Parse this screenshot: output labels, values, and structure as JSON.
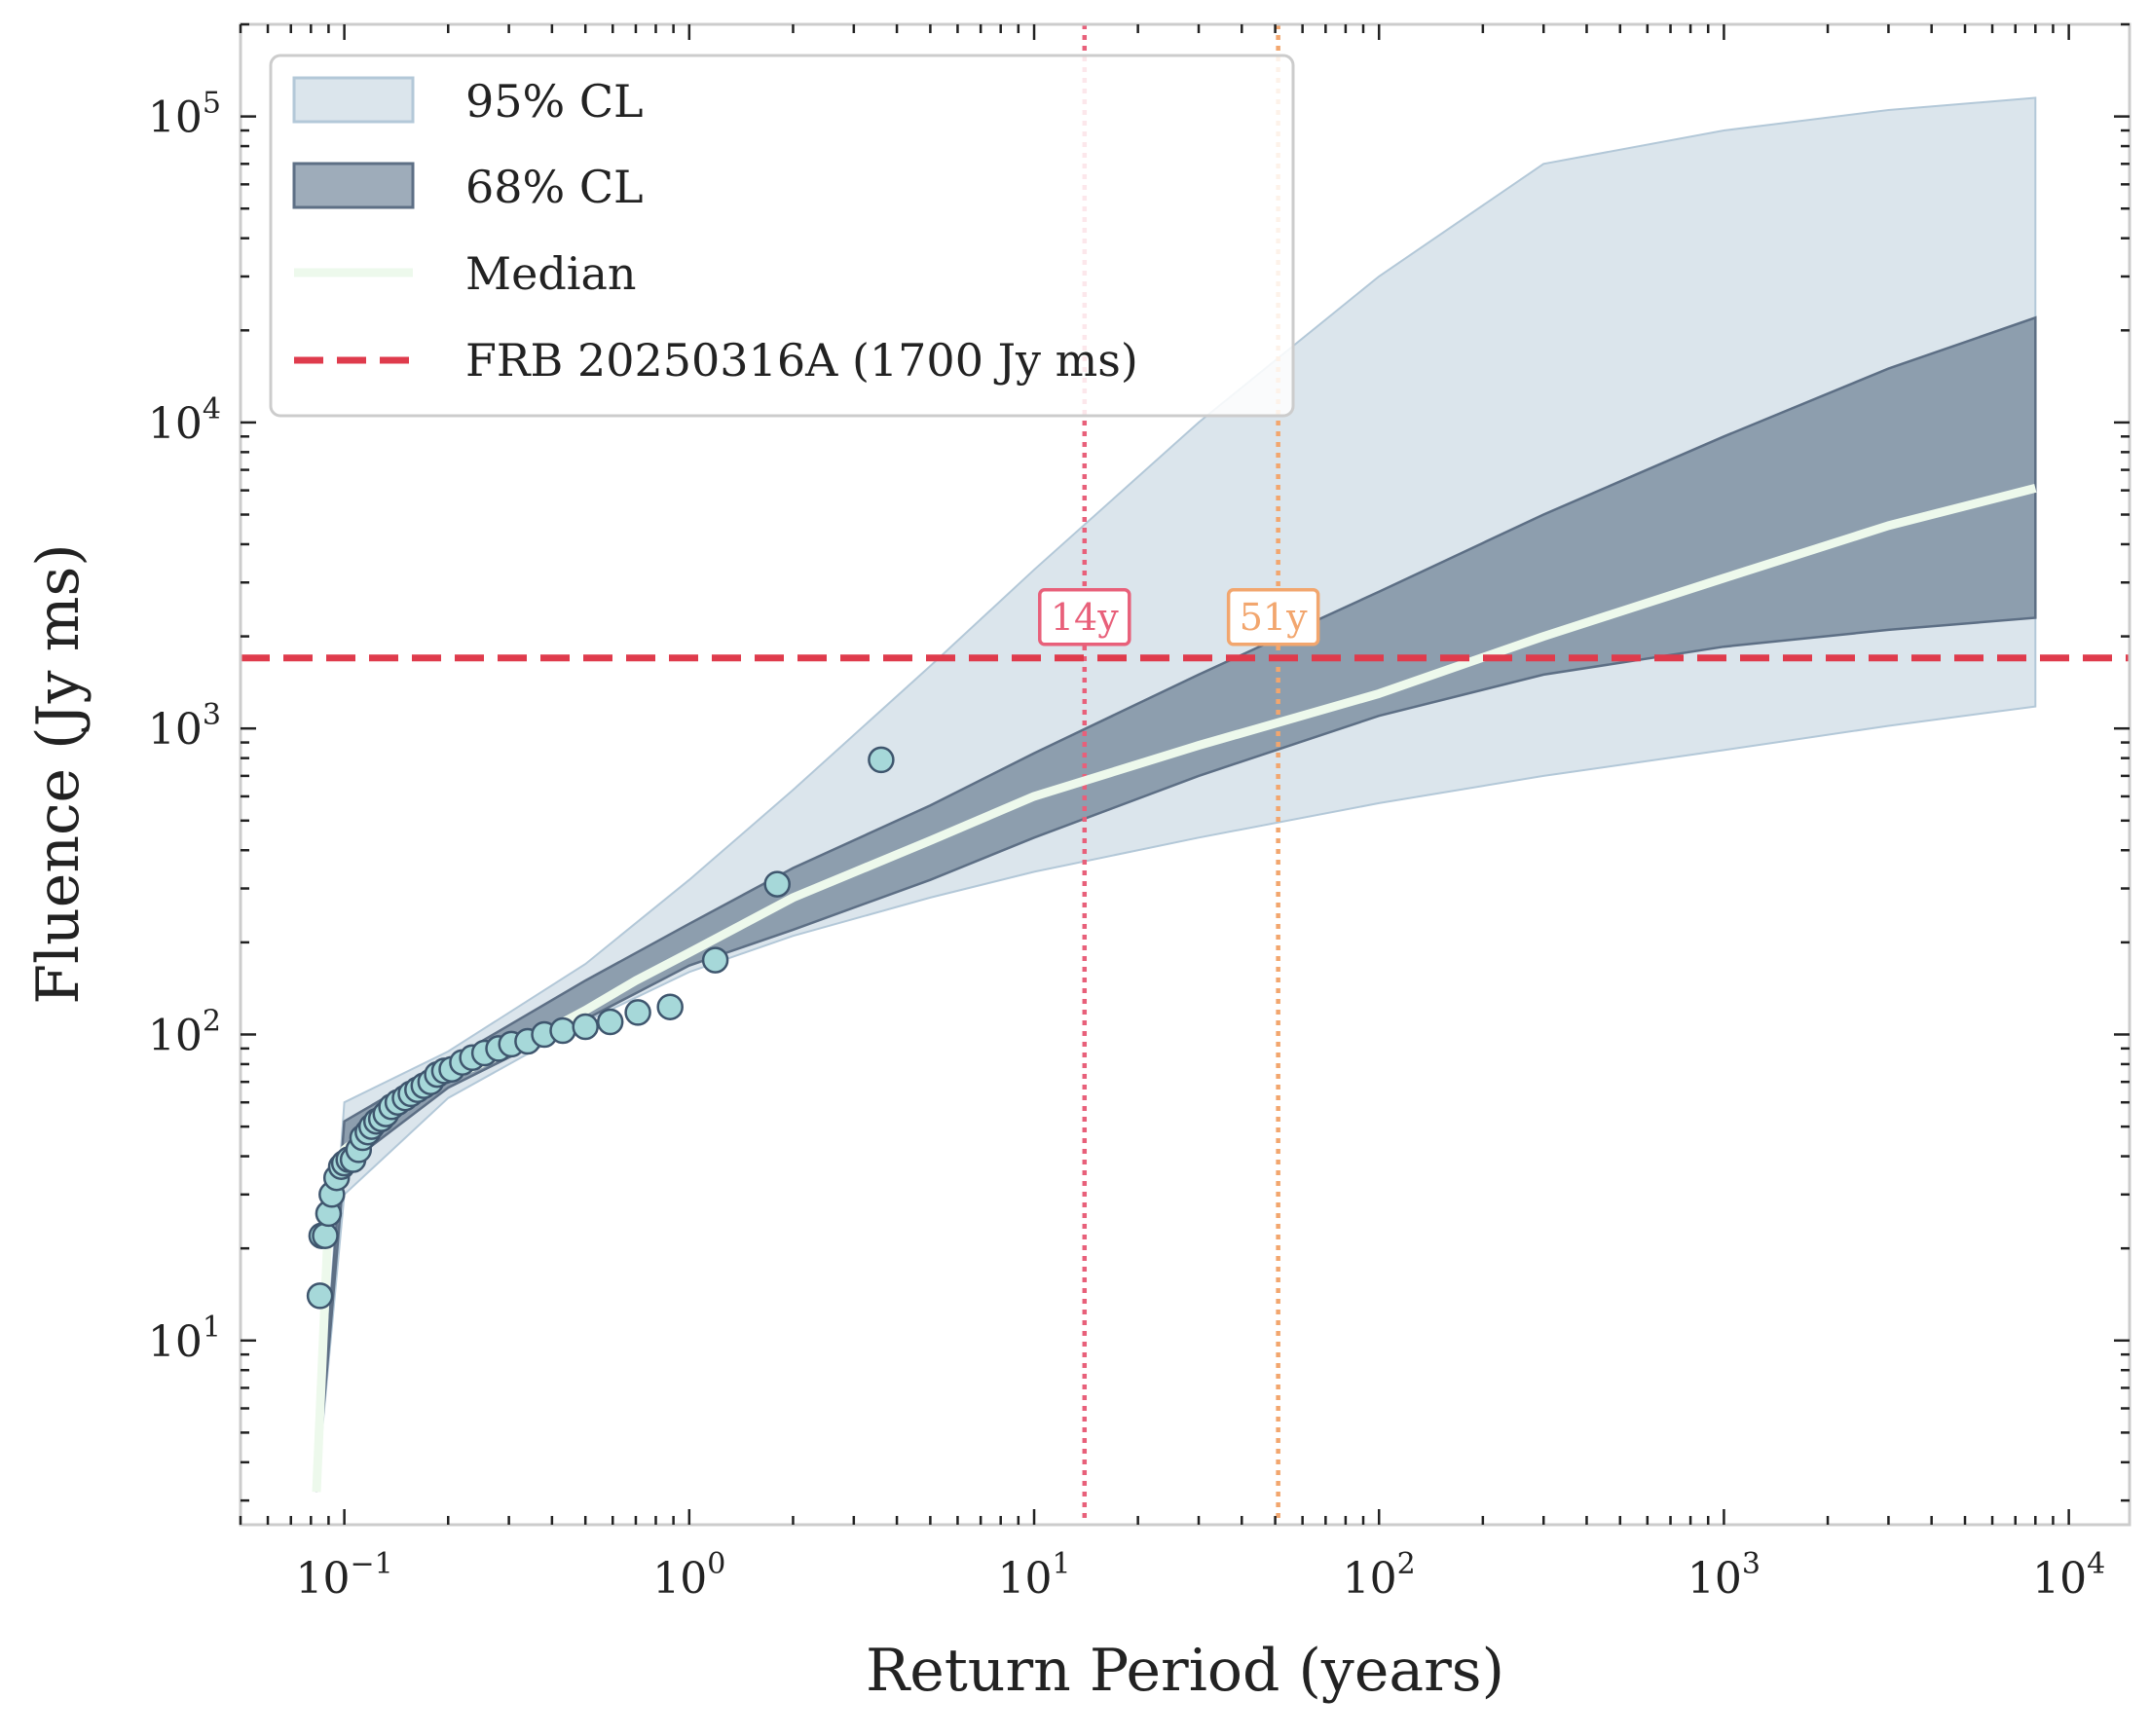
{
  "chart_data": {
    "type": "scatter",
    "xlabel": "Return Period (years)",
    "ylabel": "Fluence (Jy ms)",
    "xscale": "log",
    "yscale": "log",
    "xlim": [
      0.05,
      15000
    ],
    "ylim": [
      2.5,
      200000
    ],
    "x_ticks": [
      {
        "value": 0.1,
        "base": "10",
        "exp": "−1"
      },
      {
        "value": 1,
        "base": "10",
        "exp": "0"
      },
      {
        "value": 10,
        "base": "10",
        "exp": "1"
      },
      {
        "value": 100,
        "base": "10",
        "exp": "2"
      },
      {
        "value": 1000,
        "base": "10",
        "exp": "3"
      },
      {
        "value": 10000,
        "base": "10",
        "exp": "4"
      }
    ],
    "y_ticks": [
      {
        "value": 10,
        "base": "10",
        "exp": "1"
      },
      {
        "value": 100,
        "base": "10",
        "exp": "2"
      },
      {
        "value": 1000,
        "base": "10",
        "exp": "3"
      },
      {
        "value": 10000,
        "base": "10",
        "exp": "4"
      },
      {
        "value": 100000,
        "base": "10",
        "exp": "5"
      }
    ],
    "legend": {
      "position": "upper-left",
      "entries": [
        {
          "label": "95% CL",
          "kind": "band95"
        },
        {
          "label": "68% CL",
          "kind": "band68"
        },
        {
          "label": "Median",
          "kind": "median"
        },
        {
          "label": "FRB 20250316A (1700 Jy ms)",
          "kind": "hline"
        }
      ]
    },
    "band95": {
      "x": [
        0.083,
        0.1,
        0.2,
        0.5,
        1,
        2,
        5,
        10,
        30,
        100,
        300,
        1000,
        3000,
        8000
      ],
      "upper": [
        3.2,
        60,
        88,
        170,
        320,
        630,
        1600,
        3300,
        10000,
        30000,
        70000,
        90000,
        105000,
        115000
      ],
      "lower": [
        3.2,
        30,
        62,
        110,
        160,
        210,
        280,
        340,
        440,
        570,
        700,
        850,
        1020,
        1180
      ]
    },
    "band68": {
      "x": [
        0.083,
        0.1,
        0.2,
        0.5,
        1,
        2,
        5,
        10,
        30,
        100,
        300,
        1000,
        3000,
        8000
      ],
      "upper": [
        3.2,
        52,
        82,
        150,
        230,
        350,
        560,
        830,
        1500,
        2800,
        5000,
        9000,
        15000,
        22000
      ],
      "lower": [
        3.2,
        37,
        67,
        112,
        168,
        220,
        320,
        440,
        700,
        1100,
        1500,
        1850,
        2100,
        2300
      ]
    },
    "median": {
      "x": [
        0.083,
        0.09,
        0.1,
        0.15,
        0.2,
        0.3,
        0.5,
        0.7,
        1,
        2,
        5,
        10,
        30,
        100,
        300,
        1000,
        3000,
        8000
      ],
      "y": [
        3.2,
        25,
        42,
        60,
        72,
        88,
        120,
        150,
        185,
        280,
        430,
        600,
        880,
        1300,
        2000,
        3100,
        4600,
        6100
      ]
    },
    "points": {
      "x": [
        0.085,
        0.086,
        0.088,
        0.09,
        0.092,
        0.095,
        0.098,
        0.1,
        0.103,
        0.106,
        0.11,
        0.113,
        0.117,
        0.12,
        0.124,
        0.128,
        0.132,
        0.137,
        0.143,
        0.15,
        0.156,
        0.163,
        0.17,
        0.178,
        0.186,
        0.195,
        0.205,
        0.22,
        0.235,
        0.255,
        0.28,
        0.305,
        0.34,
        0.38,
        0.43,
        0.5,
        0.59,
        0.71,
        0.88,
        1.19,
        1.8,
        3.6
      ],
      "y": [
        14,
        22,
        22,
        26,
        30,
        34,
        37,
        38,
        39,
        39,
        42,
        46,
        48,
        50,
        52,
        53,
        55,
        58,
        60,
        62,
        64,
        66,
        68,
        70,
        74,
        76,
        77,
        81,
        84,
        87,
        90,
        93,
        95,
        100,
        103,
        106,
        110,
        118,
        123,
        175,
        310,
        790
      ]
    },
    "reference_line": {
      "label": "FRB 20250316A (1700 Jy ms)",
      "y": 1700
    },
    "vlines": [
      {
        "x": 14,
        "label": "14y",
        "color": "#e8607a"
      },
      {
        "x": 51,
        "label": "51y",
        "color": "#f2a66e"
      }
    ],
    "colors": {
      "band95": "#dbe5ec",
      "band95_edge": "#b3c8d8",
      "band68": "#8d9eae",
      "band68_edge": "#5d6f85",
      "median": "#edf9ec",
      "hline": "#df3b4c",
      "point_fill": "#a6d8d9",
      "point_edge": "#3f566e",
      "frame": "#cccccc"
    }
  }
}
